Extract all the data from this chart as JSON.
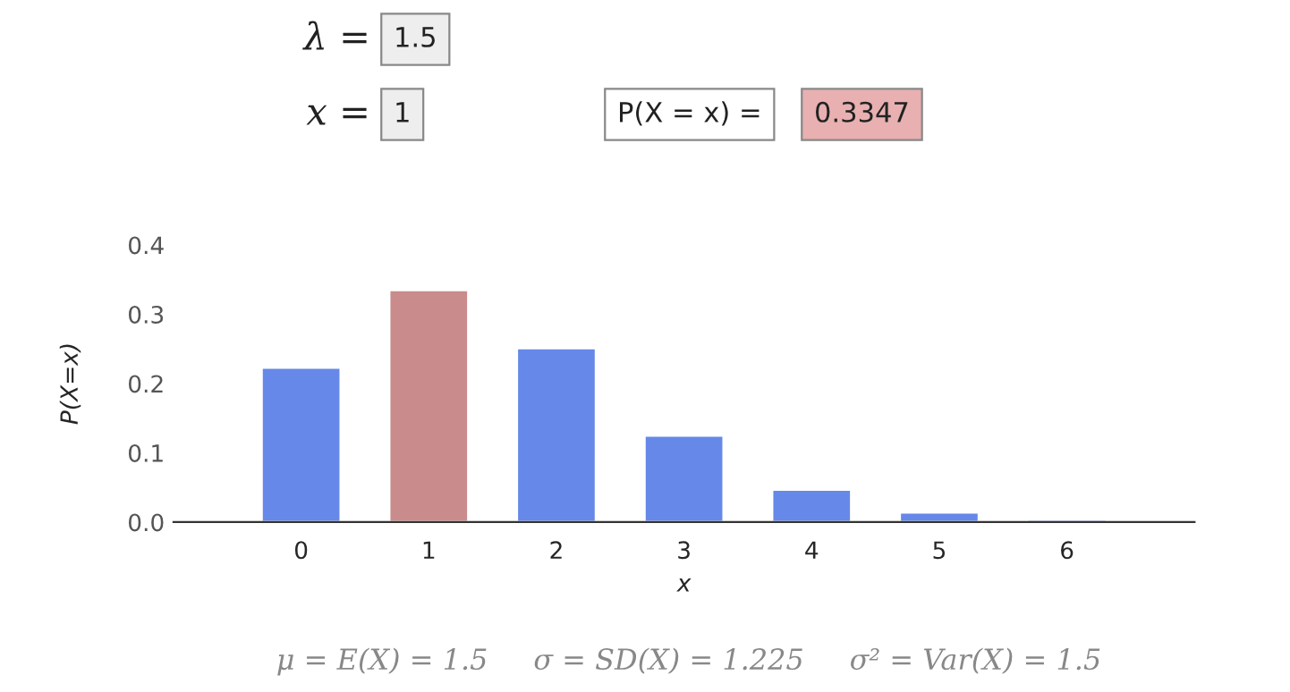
{
  "chart_data": {
    "type": "bar",
    "categories": [
      "0",
      "1",
      "2",
      "3",
      "4",
      "5",
      "6"
    ],
    "values": [
      0.223,
      0.335,
      0.251,
      0.125,
      0.047,
      0.014,
      0.004
    ],
    "colors": [
      "#6688e8",
      "#c98b8b",
      "#6688e8",
      "#6688e8",
      "#6688e8",
      "#6688e8",
      "#6688e8"
    ],
    "xlabel": "x",
    "ylabel": "P(X=x)",
    "ylim": [
      0,
      0.4
    ],
    "yticks": [
      {
        "value": 0,
        "label": "0.0"
      },
      0.1,
      0.2,
      0.3,
      0.4
    ],
    "grid": false,
    "annotations": [
      "λ =",
      "1.5",
      "x =",
      "1",
      "P(X = x) =",
      "0.3347",
      "μ = E(X) = 1.5     σ = SD(X) = 1.225     σ² = Var(X) = 1.5"
    ]
  }
}
